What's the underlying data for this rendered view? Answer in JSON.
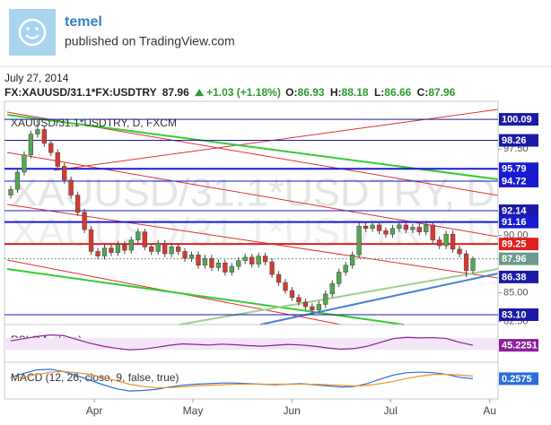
{
  "header": {
    "author": "temel",
    "published": "published on TradingView.com"
  },
  "date": "July 27, 2014",
  "quote": {
    "symbol": "FX:XAUUSD/31.1*FX:USDTRY",
    "last": "87.96",
    "change": "+1.03 (+1.18%)",
    "ohlc": [
      {
        "label": "O:",
        "value": "86.93"
      },
      {
        "label": "H:",
        "value": "88.18"
      },
      {
        "label": "L:",
        "value": "86.66"
      },
      {
        "label": "C:",
        "value": "87.96"
      }
    ]
  },
  "chart_data": {
    "type": "candlestick",
    "legend": "XAUUSD/31.1*USDTRY, D, FXCM",
    "watermark": "XAUUSD/31.1*USDTRY, D",
    "up_color": "#53a653",
    "down_color": "#d53a2f",
    "ylim": [
      82.24,
      101.11
    ],
    "yticks": [
      {
        "value": 97.5,
        "label": "97.50"
      },
      {
        "value": 90,
        "label": "90.00"
      },
      {
        "value": 85,
        "label": "85.00"
      },
      {
        "value": 82.5,
        "label": "82.50"
      }
    ],
    "xlim": [
      0,
      69
    ],
    "xticks": [
      {
        "value": 12.47,
        "label": "Apr"
      },
      {
        "value": 27.2,
        "label": "May"
      },
      {
        "value": 41.96,
        "label": "Jun"
      },
      {
        "value": 56.7,
        "label": "Jul"
      },
      {
        "value": 71.5,
        "label": "Au"
      }
    ],
    "open": [
      93.5,
      94.0,
      95.5,
      97.0,
      98.8,
      99.2,
      98.0,
      97.2,
      96.0,
      94.8,
      93.5,
      92.0,
      90.5,
      88.6,
      88.2,
      88.9,
      88.5,
      89.2,
      88.7,
      89.6,
      90.3,
      89.0,
      88.6,
      89.3,
      88.4,
      89.0,
      88.6,
      88.0,
      88.3,
      87.4,
      88.0,
      87.2,
      87.6,
      86.8,
      87.3,
      87.8,
      88.1,
      87.5,
      88.2,
      87.7,
      86.6,
      85.9,
      85.2,
      84.6,
      84.2,
      83.8,
      83.5,
      84.0,
      84.9,
      85.8,
      86.8,
      87.4,
      88.3,
      90.8,
      90.6,
      90.9,
      90.4,
      90.1,
      90.6,
      90.9,
      90.5,
      90.7,
      90.3,
      90.9,
      89.6,
      89.1,
      90.1,
      88.8,
      88.4,
      86.93
    ],
    "high": [
      94.3,
      95.8,
      97.3,
      99.1,
      100.09,
      99.5,
      98.3,
      97.5,
      96.3,
      95.1,
      93.8,
      92.3,
      90.8,
      88.9,
      89.2,
      89.2,
      89.5,
      89.5,
      89.9,
      90.6,
      90.6,
      89.3,
      89.6,
      89.6,
      89.3,
      89.3,
      88.9,
      88.6,
      88.6,
      88.3,
      88.3,
      87.9,
      87.9,
      87.6,
      88.1,
      88.4,
      88.4,
      88.5,
      88.5,
      88.0,
      86.9,
      86.2,
      85.5,
      84.9,
      84.5,
      84.1,
      84.3,
      85.2,
      86.1,
      87.1,
      87.7,
      88.6,
      91.1,
      91.1,
      91.2,
      91.2,
      90.7,
      90.9,
      91.2,
      91.2,
      91.0,
      91.0,
      91.2,
      91.2,
      89.9,
      90.4,
      90.4,
      89.1,
      88.7,
      88.18
    ],
    "low": [
      93.2,
      93.7,
      95.2,
      96.7,
      98.5,
      97.7,
      96.9,
      95.7,
      94.5,
      93.2,
      91.7,
      90.2,
      88.3,
      87.9,
      87.9,
      88.2,
      88.2,
      88.4,
      88.4,
      89.3,
      88.7,
      88.3,
      88.3,
      88.1,
      88.1,
      88.3,
      87.7,
      87.7,
      87.1,
      87.1,
      86.9,
      86.9,
      86.5,
      86.5,
      87.0,
      87.5,
      87.2,
      87.2,
      87.4,
      86.3,
      85.6,
      84.9,
      84.3,
      83.9,
      83.5,
      83.1,
      83.2,
      83.7,
      84.6,
      85.5,
      86.5,
      87.1,
      88.0,
      90.3,
      90.3,
      90.1,
      89.8,
      89.8,
      90.3,
      90.2,
      90.2,
      90.0,
      90.0,
      89.3,
      88.8,
      88.8,
      88.5,
      88.1,
      86.38,
      86.66
    ],
    "close": [
      94.0,
      95.5,
      97.0,
      98.8,
      99.2,
      98.0,
      97.2,
      96.0,
      94.8,
      93.5,
      92.0,
      90.5,
      88.6,
      88.2,
      88.9,
      88.5,
      89.2,
      88.7,
      89.6,
      90.3,
      89.0,
      88.6,
      89.3,
      88.4,
      89.0,
      88.6,
      88.0,
      88.3,
      87.4,
      88.0,
      87.2,
      87.6,
      86.8,
      87.3,
      87.8,
      88.1,
      87.5,
      88.2,
      87.7,
      86.6,
      85.9,
      85.2,
      84.6,
      84.2,
      83.8,
      83.5,
      84.0,
      84.9,
      85.8,
      86.8,
      87.4,
      88.3,
      90.8,
      90.6,
      90.9,
      90.4,
      90.1,
      90.6,
      90.9,
      90.5,
      90.7,
      90.3,
      90.9,
      89.6,
      89.1,
      90.1,
      88.8,
      88.4,
      86.93,
      87.96
    ],
    "levels": [
      {
        "value": 100.09,
        "label": "100.09",
        "color": "#1a1aa6",
        "style": "thin"
      },
      {
        "value": 98.26,
        "label": "98.26",
        "color": "#1a1aa6",
        "style": "thin"
      },
      {
        "value": 95.79,
        "label": "95.79",
        "color": "#1a1ad0",
        "style": "thick"
      },
      {
        "value": 94.72,
        "label": "94.72",
        "color": "#1a1ad0",
        "style": "thin"
      },
      {
        "value": 92.14,
        "label": "92.14",
        "color": "#1a1aa6",
        "style": "thin"
      },
      {
        "value": 91.16,
        "label": "91.16",
        "color": "#1a1ad0",
        "style": "thick"
      },
      {
        "value": 89.25,
        "label": "89.25",
        "color": "#e02020",
        "style": "thick"
      },
      {
        "value": 87.96,
        "label": "87.96",
        "color": "#6c9a8b",
        "style": "dotted"
      },
      {
        "value": 86.38,
        "label": "86.38",
        "color": "#1a1aa6",
        "style": "none"
      },
      {
        "value": 83.1,
        "label": "83.10",
        "color": "#1a1aa6",
        "style": "thin"
      }
    ],
    "rsi": {
      "label": "RSI (14, close)",
      "value_label": "45.2251",
      "color": "#8e1f9a",
      "ylim": [
        0,
        100
      ],
      "band": [
        30,
        70
      ],
      "values": [
        60,
        68,
        75,
        80,
        78,
        65,
        52,
        42,
        35,
        30,
        32,
        38,
        45,
        50,
        48,
        46,
        49,
        47,
        44,
        42,
        45,
        48,
        46,
        42,
        36,
        32,
        34,
        42,
        55,
        68,
        72,
        70,
        71,
        68,
        55,
        45.2251
      ]
    },
    "macd": {
      "label": "MACD (12, 26, close, 9, false, true)",
      "value_label": "0.2575",
      "color": "#2a6fd6",
      "signal_color": "#f0912a",
      "ylim": [
        -2.5,
        2.5
      ],
      "values": [
        0.5,
        1.2,
        1.8,
        1.9,
        1.5,
        0.8,
        0,
        -0.8,
        -1.5,
        -1.9,
        -1.8,
        -1.6,
        -1.2,
        -0.9,
        -0.7,
        -0.6,
        -0.5,
        -0.5,
        -0.6,
        -0.7,
        -0.8,
        -0.7,
        -0.6,
        -0.8,
        -1.0,
        -1.2,
        -1.1,
        -0.6,
        0.2,
        0.9,
        1.3,
        1.4,
        1.3,
        1.0,
        0.5,
        0.2575
      ],
      "signal": [
        0.3,
        0.6,
        1.0,
        1.4,
        1.5,
        1.3,
        1.0,
        0.5,
        -0.1,
        -0.7,
        -1.1,
        -1.3,
        -1.3,
        -1.2,
        -1.0,
        -0.9,
        -0.8,
        -0.7,
        -0.7,
        -0.7,
        -0.7,
        -0.7,
        -0.7,
        -0.7,
        -0.8,
        -0.9,
        -1.0,
        -0.9,
        -0.6,
        -0.2,
        0.3,
        0.7,
        1.0,
        1.0,
        0.9,
        0.7
      ]
    }
  }
}
